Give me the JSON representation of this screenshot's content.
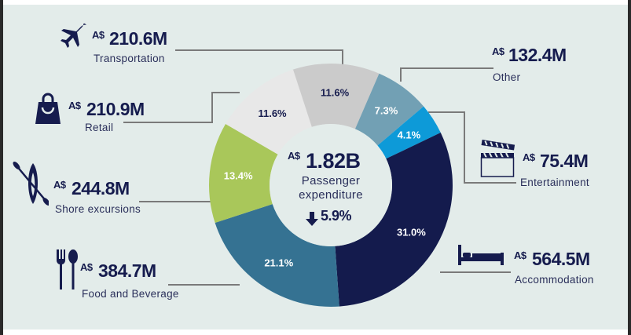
{
  "chart_data": {
    "type": "pie",
    "donut": true,
    "center": {
      "currency": "A$",
      "total": "1.82B",
      "label_line1": "Passenger",
      "label_line2": "expenditure",
      "change_direction": "down",
      "change": "5.9%"
    },
    "slices": [
      {
        "name": "Transportation",
        "percent": 11.6,
        "pct_label": "11.6%",
        "currency": "A$",
        "value": "210.6M",
        "color": "#cbcbcb",
        "label_color": "#161c4e",
        "icon": "airplane-icon"
      },
      {
        "name": "Other",
        "percent": 7.3,
        "pct_label": "7.3%",
        "currency": "A$",
        "value": "132.4M",
        "color": "#72a0b4",
        "label_color": "#ffffff",
        "icon": ""
      },
      {
        "name": "Entertainment",
        "percent": 4.1,
        "pct_label": "4.1%",
        "currency": "A$",
        "value": "75.4M",
        "color": "#0d9ad8",
        "label_color": "#ffffff",
        "icon": "clapperboard-icon"
      },
      {
        "name": "Accommodation",
        "percent": 31.0,
        "pct_label": "31.0%",
        "currency": "A$",
        "value": "564.5M",
        "color": "#141b4d",
        "label_color": "#ffffff",
        "icon": "bed-icon"
      },
      {
        "name": "Food and Beverage",
        "percent": 21.1,
        "pct_label": "21.1%",
        "currency": "A$",
        "value": "384.7M",
        "color": "#357292",
        "label_color": "#ffffff",
        "icon": "fork-spoon-icon"
      },
      {
        "name": "Shore excursions",
        "percent": 13.4,
        "pct_label": "13.4%",
        "currency": "A$",
        "value": "244.8M",
        "color": "#a9c75a",
        "label_color": "#ffffff",
        "icon": "kayak-icon"
      },
      {
        "name": "Retail",
        "percent": 11.6,
        "pct_label": "11.6%",
        "currency": "A$",
        "value": "210.9M",
        "color": "#e8e8e8",
        "label_color": "#161c4e",
        "icon": "shopping-bag-icon"
      }
    ]
  },
  "colors": {
    "text": "#161c4e",
    "background": "#e3ecea",
    "leader_line": "#7a7a7a"
  }
}
